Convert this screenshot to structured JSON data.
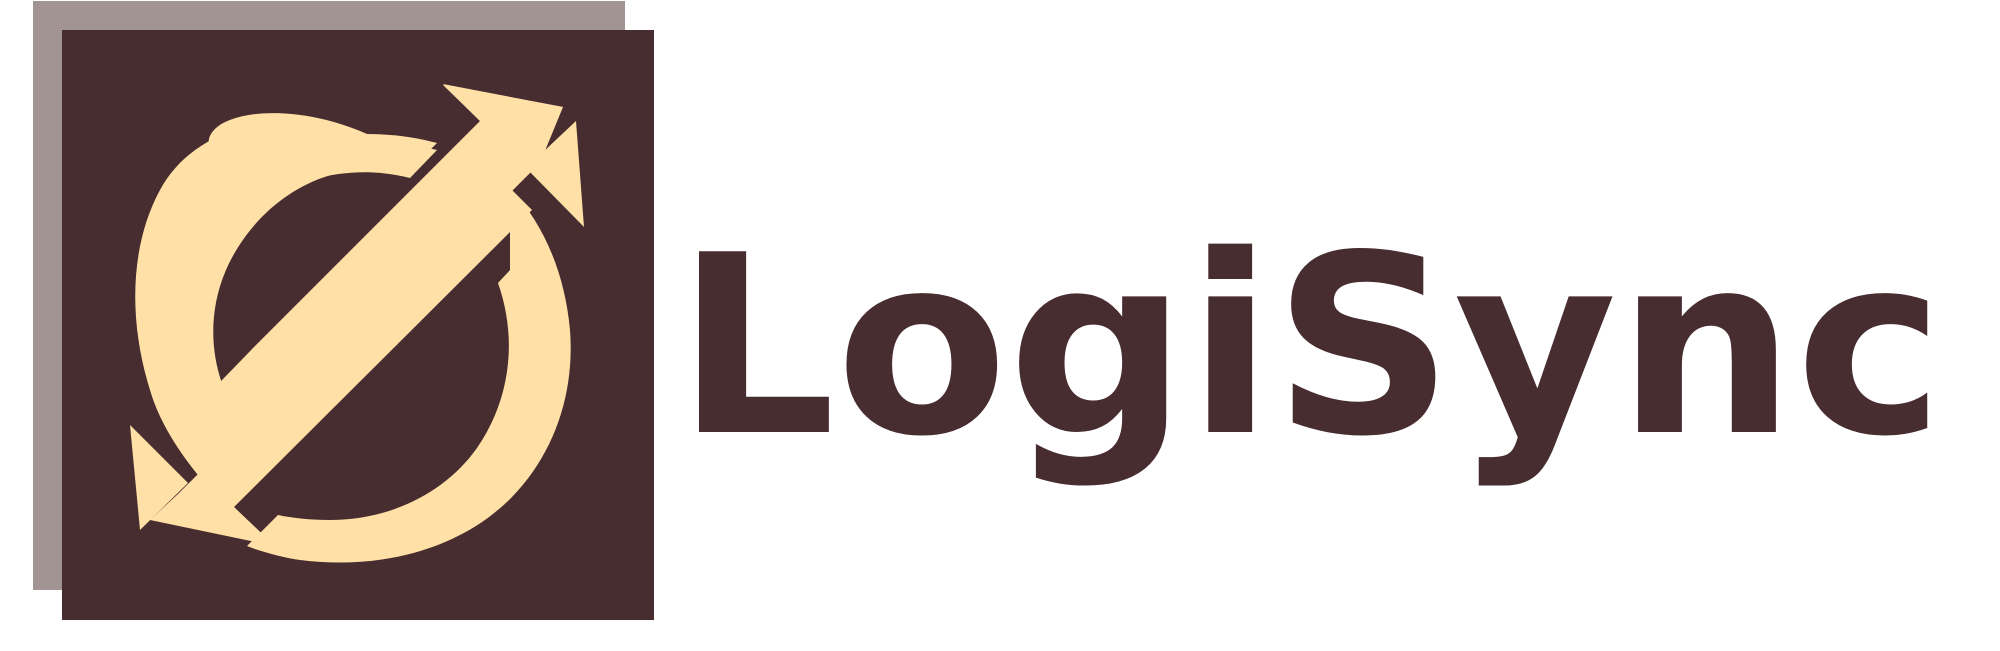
{
  "brand": {
    "name": "LogiSync",
    "icon": "sync-arrows-mark"
  },
  "colors": {
    "primary": "#472C30",
    "shadow": "#A39494",
    "accent": "#FFE0A6",
    "background": "#FFFFFF"
  }
}
